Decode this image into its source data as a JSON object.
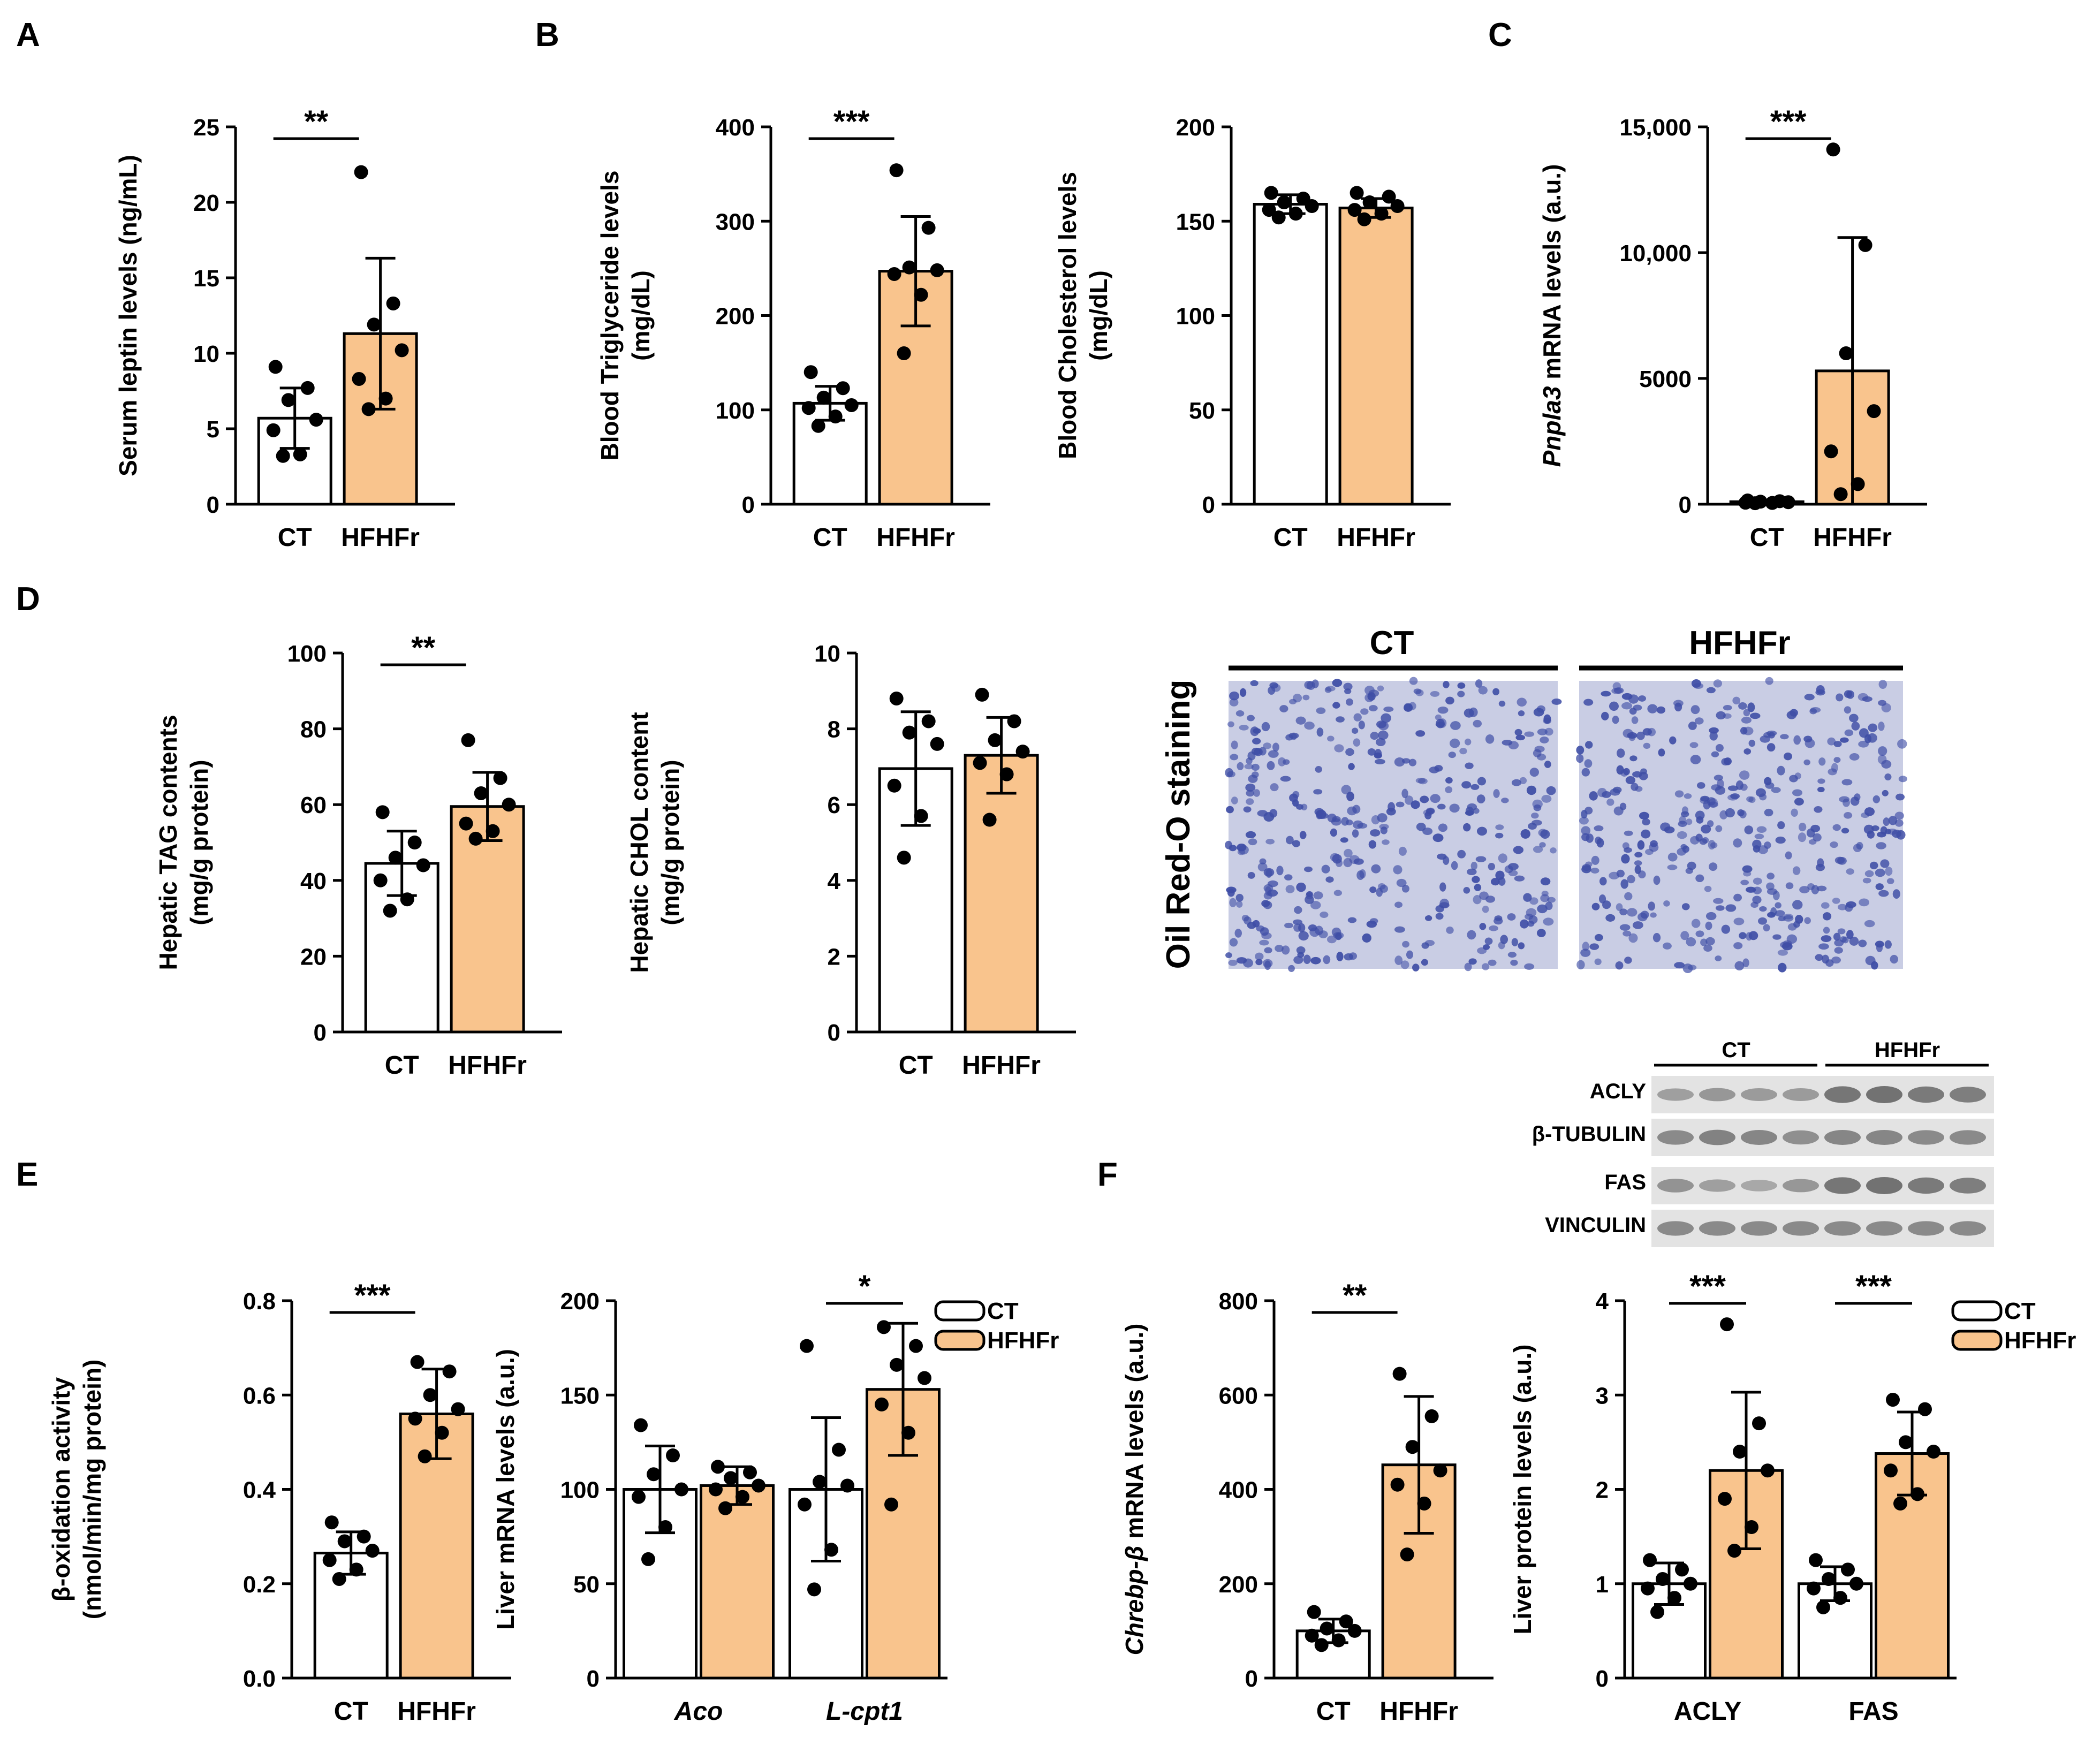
{
  "colors": {
    "control": "#ffffff",
    "treatment": "#f9c48d",
    "axis": "#000000",
    "tissue": "#c9cde4",
    "blot": "#6b6b6b"
  },
  "panel_labels": [
    "A",
    "B",
    "C",
    "D",
    "E",
    "F"
  ],
  "histology": {
    "row_label": "Oil Red-O staining",
    "groups": [
      "CT",
      "HFHFr"
    ]
  },
  "western": {
    "groups": [
      "CT",
      "HFHFr"
    ],
    "rows": [
      {
        "label": "ACLY",
        "ct": [
          0.45,
          0.55,
          0.5,
          0.5
        ],
        "hf": [
          0.95,
          1.0,
          0.9,
          0.85
        ]
      },
      {
        "label": "β-TUBULIN",
        "ct": [
          0.7,
          0.8,
          0.75,
          0.65
        ],
        "hf": [
          0.75,
          0.75,
          0.7,
          0.7
        ]
      },
      {
        "label": "FAS",
        "ct": [
          0.6,
          0.45,
          0.35,
          0.55
        ],
        "hf": [
          0.95,
          1.0,
          0.9,
          0.85
        ]
      },
      {
        "label": "VINCULIN",
        "ct": [
          0.7,
          0.7,
          0.7,
          0.7
        ],
        "hf": [
          0.7,
          0.7,
          0.7,
          0.7
        ]
      }
    ]
  },
  "chart_data": [
    {
      "id": "A",
      "type": "bar",
      "categories": [
        "CT",
        "HFHFr"
      ],
      "ylabel": "Serum leptin levels (ng/mL)",
      "ylim": [
        0,
        25
      ],
      "yticks": [
        "0",
        "5",
        "10",
        "15",
        "20",
        "25"
      ],
      "series": [
        {
          "name": "CT",
          "mean": 5.7,
          "sd": 2.0,
          "points": [
            9.1,
            7.7,
            6.9,
            5.6,
            4.9,
            3.3,
            3.2
          ]
        },
        {
          "name": "HFHFr",
          "mean": 11.3,
          "sd": 5.0,
          "points": [
            22.0,
            13.3,
            11.9,
            10.2,
            8.3,
            7.0,
            6.3
          ]
        }
      ],
      "significance": [
        {
          "groups": [
            0,
            1
          ],
          "label": "**"
        }
      ]
    },
    {
      "id": "B1",
      "type": "bar",
      "categories": [
        "CT",
        "HFHFr"
      ],
      "ylabel": [
        "Blood Triglyceride levels",
        "(mg/dL)"
      ],
      "ylim": [
        0,
        400
      ],
      "yticks": [
        "0",
        "100",
        "200",
        "300",
        "400"
      ],
      "series": [
        {
          "name": "CT",
          "mean": 107,
          "sd": 18,
          "points": [
            140,
            123,
            113,
            105,
            102,
            93,
            83
          ]
        },
        {
          "name": "HFHFr",
          "mean": 247,
          "sd": 58,
          "points": [
            354,
            293,
            251,
            248,
            244,
            222,
            160
          ]
        }
      ],
      "significance": [
        {
          "groups": [
            0,
            1
          ],
          "label": "***"
        }
      ]
    },
    {
      "id": "B2",
      "type": "bar",
      "categories": [
        "CT",
        "HFHFr"
      ],
      "ylabel": [
        "Blood Cholesterol levels",
        "(mg/dL)"
      ],
      "ylim": [
        0,
        200
      ],
      "yticks": [
        "0",
        "50",
        "100",
        "150",
        "200"
      ],
      "series": [
        {
          "name": "CT",
          "mean": 159,
          "sd": 5,
          "points": [
            165,
            162,
            160,
            158,
            156,
            154,
            152
          ]
        },
        {
          "name": "HFHFr",
          "mean": 157,
          "sd": 5,
          "points": [
            165,
            163,
            160,
            158,
            156,
            154,
            151
          ]
        }
      ],
      "significance": []
    },
    {
      "id": "C",
      "type": "bar",
      "categories": [
        "CT",
        "HFHFr"
      ],
      "ylabel": [
        "Pnpla3",
        " mRNA levels (a.u.)"
      ],
      "ylabel_italic_first": true,
      "ylim": [
        0,
        15000
      ],
      "yticks": [
        "0",
        "5000",
        "10,000",
        "15,000"
      ],
      "series": [
        {
          "name": "CT",
          "mean": 100,
          "sd": 60,
          "points": [
            150,
            120,
            100,
            80,
            60,
            50,
            40
          ]
        },
        {
          "name": "HFHFr",
          "mean": 5300,
          "sd": 5300,
          "points": [
            14100,
            10300,
            6000,
            3700,
            2100,
            800,
            400
          ]
        }
      ],
      "significance": [
        {
          "groups": [
            0,
            1
          ],
          "label": "***"
        }
      ]
    },
    {
      "id": "D1",
      "type": "bar",
      "categories": [
        "CT",
        "HFHFr"
      ],
      "ylabel": [
        "Hepatic TAG contents",
        "(mg/g protein)"
      ],
      "ylim": [
        0,
        100
      ],
      "yticks": [
        "0",
        "20",
        "40",
        "60",
        "80",
        "100"
      ],
      "series": [
        {
          "name": "CT",
          "mean": 44.5,
          "sd": 8.5,
          "points": [
            58,
            50,
            46,
            44,
            40,
            35,
            32
          ]
        },
        {
          "name": "HFHFr",
          "mean": 59.5,
          "sd": 9,
          "points": [
            77,
            67,
            63,
            60,
            55,
            53,
            51
          ]
        }
      ],
      "significance": [
        {
          "groups": [
            0,
            1
          ],
          "label": "**"
        }
      ]
    },
    {
      "id": "D2",
      "type": "bar",
      "categories": [
        "CT",
        "HFHFr"
      ],
      "ylabel": [
        "Hepatic CHOL content",
        "(mg/g protein)"
      ],
      "ylim": [
        0,
        10
      ],
      "yticks": [
        "0",
        "2",
        "4",
        "6",
        "8",
        "10"
      ],
      "series": [
        {
          "name": "CT",
          "mean": 6.95,
          "sd": 1.5,
          "points": [
            8.8,
            8.2,
            7.9,
            7.6,
            6.5,
            5.7,
            4.6
          ]
        },
        {
          "name": "HFHFr",
          "mean": 7.3,
          "sd": 1.0,
          "points": [
            8.9,
            8.2,
            7.7,
            7.4,
            7.1,
            6.8,
            5.6
          ]
        }
      ],
      "significance": []
    },
    {
      "id": "E1",
      "type": "bar",
      "categories": [
        "CT",
        "HFHFr"
      ],
      "ylabel": [
        "β-oxidation activity",
        "(nmol/min/mg protein)"
      ],
      "ylim": [
        0,
        0.8
      ],
      "yticks": [
        "0.0",
        "0.2",
        "0.4",
        "0.6",
        "0.8"
      ],
      "series": [
        {
          "name": "CT",
          "mean": 0.265,
          "sd": 0.045,
          "points": [
            0.33,
            0.3,
            0.29,
            0.27,
            0.25,
            0.23,
            0.21
          ]
        },
        {
          "name": "HFHFr",
          "mean": 0.56,
          "sd": 0.095,
          "points": [
            0.67,
            0.65,
            0.6,
            0.57,
            0.55,
            0.52,
            0.47
          ]
        }
      ],
      "significance": [
        {
          "groups": [
            0,
            1
          ],
          "label": "***"
        }
      ]
    },
    {
      "id": "E2",
      "type": "bar",
      "categories": [
        "Aco",
        "L-cpt1"
      ],
      "categories_italic": true,
      "ylabel": "Liver mRNA levels (a.u.)",
      "ylim": [
        0,
        200
      ],
      "yticks": [
        "0",
        "50",
        "100",
        "150",
        "200"
      ],
      "legend": [
        "CT",
        "HFHFr"
      ],
      "series": [
        {
          "name": "CT",
          "means": [
            100,
            100
          ],
          "sds": [
            23,
            38
          ],
          "points": [
            [
              134,
              118,
              108,
              100,
              96,
              80,
              63
            ],
            [
              176,
              121,
              104,
              102,
              92,
              68,
              47
            ]
          ]
        },
        {
          "name": "HFHFr",
          "means": [
            102,
            153
          ],
          "sds": [
            10,
            35
          ],
          "points": [
            [
              112,
              109,
              106,
              102,
              100,
              96,
              90
            ],
            [
              186,
              176,
              166,
              159,
              145,
              130,
              92
            ]
          ]
        }
      ],
      "significance": [
        {
          "category": 1,
          "label": "*"
        }
      ]
    },
    {
      "id": "F1",
      "type": "bar",
      "categories": [
        "CT",
        "HFHFr"
      ],
      "ylabel": [
        "Chrebp-β",
        " mRNA levels (a.u.)"
      ],
      "ylabel_italic_first": true,
      "ylim": [
        0,
        800
      ],
      "yticks": [
        "0",
        "200",
        "400",
        "600",
        "800"
      ],
      "series": [
        {
          "name": "CT",
          "mean": 100,
          "sd": 25,
          "points": [
            140,
            120,
            105,
            100,
            90,
            80,
            70
          ]
        },
        {
          "name": "HFHFr",
          "mean": 452,
          "sd": 145,
          "points": [
            645,
            555,
            490,
            440,
            410,
            370,
            262
          ]
        }
      ],
      "significance": [
        {
          "groups": [
            0,
            1
          ],
          "label": "**"
        }
      ]
    },
    {
      "id": "F2",
      "type": "bar",
      "categories": [
        "ACLY",
        "FAS"
      ],
      "ylabel": "Liver protein levels (a.u.)",
      "ylim": [
        0,
        4
      ],
      "yticks": [
        "0",
        "1",
        "2",
        "3",
        "4"
      ],
      "legend": [
        "CT",
        "HFHFr"
      ],
      "series": [
        {
          "name": "CT",
          "means": [
            1.0,
            1.0
          ],
          "sds": [
            0.22,
            0.18
          ],
          "points": [
            [
              1.25,
              1.15,
              1.05,
              1.0,
              0.95,
              0.85,
              0.7
            ],
            [
              1.25,
              1.15,
              1.05,
              1.0,
              0.95,
              0.85,
              0.75
            ]
          ]
        },
        {
          "name": "HFHFr",
          "means": [
            2.2,
            2.38
          ],
          "sds": [
            0.83,
            0.44
          ],
          "points": [
            [
              3.75,
              2.7,
              2.4,
              2.2,
              1.9,
              1.6,
              1.35
            ],
            [
              2.95,
              2.85,
              2.5,
              2.4,
              2.2,
              1.95,
              1.85
            ]
          ]
        }
      ],
      "significance": [
        {
          "category": 0,
          "label": "***"
        },
        {
          "category": 1,
          "label": "***"
        }
      ]
    }
  ]
}
